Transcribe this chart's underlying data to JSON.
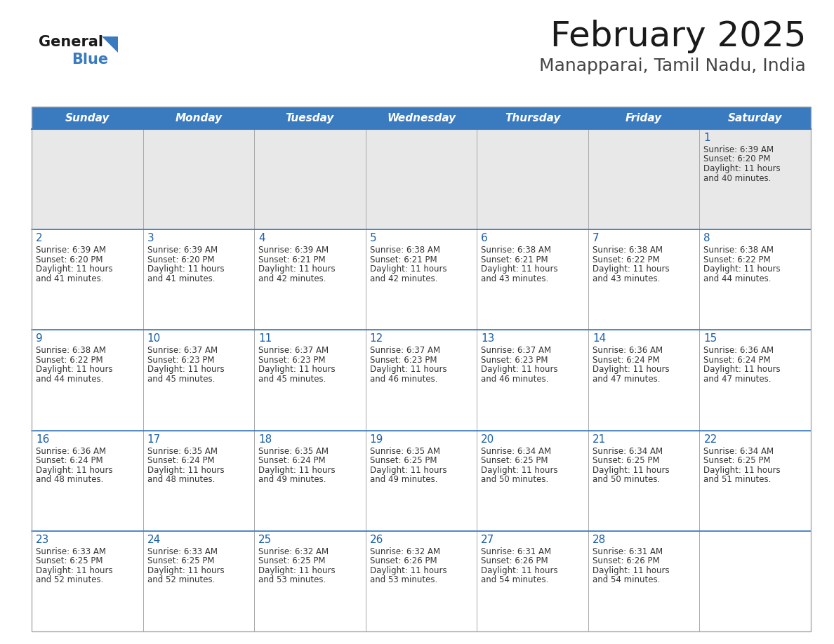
{
  "title": "February 2025",
  "subtitle": "Manapparai, Tamil Nadu, India",
  "days_of_week": [
    "Sunday",
    "Monday",
    "Tuesday",
    "Wednesday",
    "Thursday",
    "Friday",
    "Saturday"
  ],
  "header_bg": "#3a7abf",
  "header_text": "#ffffff",
  "row1_bg": "#e8e8e8",
  "cell_bg": "#ffffff",
  "day_number_color": "#1a5fa8",
  "cell_text_color": "#333333",
  "grid_color": "#aaaaaa",
  "border_color": "#3a7abf",
  "title_color": "#1a1a1a",
  "subtitle_color": "#444444",
  "logo_general_color": "#1a1a1a",
  "logo_blue_color": "#3a7abf",
  "calendar": [
    [
      null,
      null,
      null,
      null,
      null,
      null,
      {
        "day": 1,
        "sunrise": "6:39 AM",
        "sunset": "6:20 PM",
        "daylight_hours": 11,
        "daylight_min": "40 minutes."
      }
    ],
    [
      {
        "day": 2,
        "sunrise": "6:39 AM",
        "sunset": "6:20 PM",
        "daylight_hours": 11,
        "daylight_min": "41 minutes."
      },
      {
        "day": 3,
        "sunrise": "6:39 AM",
        "sunset": "6:20 PM",
        "daylight_hours": 11,
        "daylight_min": "41 minutes."
      },
      {
        "day": 4,
        "sunrise": "6:39 AM",
        "sunset": "6:21 PM",
        "daylight_hours": 11,
        "daylight_min": "42 minutes."
      },
      {
        "day": 5,
        "sunrise": "6:38 AM",
        "sunset": "6:21 PM",
        "daylight_hours": 11,
        "daylight_min": "42 minutes."
      },
      {
        "day": 6,
        "sunrise": "6:38 AM",
        "sunset": "6:21 PM",
        "daylight_hours": 11,
        "daylight_min": "43 minutes."
      },
      {
        "day": 7,
        "sunrise": "6:38 AM",
        "sunset": "6:22 PM",
        "daylight_hours": 11,
        "daylight_min": "43 minutes."
      },
      {
        "day": 8,
        "sunrise": "6:38 AM",
        "sunset": "6:22 PM",
        "daylight_hours": 11,
        "daylight_min": "44 minutes."
      }
    ],
    [
      {
        "day": 9,
        "sunrise": "6:38 AM",
        "sunset": "6:22 PM",
        "daylight_hours": 11,
        "daylight_min": "44 minutes."
      },
      {
        "day": 10,
        "sunrise": "6:37 AM",
        "sunset": "6:23 PM",
        "daylight_hours": 11,
        "daylight_min": "45 minutes."
      },
      {
        "day": 11,
        "sunrise": "6:37 AM",
        "sunset": "6:23 PM",
        "daylight_hours": 11,
        "daylight_min": "45 minutes."
      },
      {
        "day": 12,
        "sunrise": "6:37 AM",
        "sunset": "6:23 PM",
        "daylight_hours": 11,
        "daylight_min": "46 minutes."
      },
      {
        "day": 13,
        "sunrise": "6:37 AM",
        "sunset": "6:23 PM",
        "daylight_hours": 11,
        "daylight_min": "46 minutes."
      },
      {
        "day": 14,
        "sunrise": "6:36 AM",
        "sunset": "6:24 PM",
        "daylight_hours": 11,
        "daylight_min": "47 minutes."
      },
      {
        "day": 15,
        "sunrise": "6:36 AM",
        "sunset": "6:24 PM",
        "daylight_hours": 11,
        "daylight_min": "47 minutes."
      }
    ],
    [
      {
        "day": 16,
        "sunrise": "6:36 AM",
        "sunset": "6:24 PM",
        "daylight_hours": 11,
        "daylight_min": "48 minutes."
      },
      {
        "day": 17,
        "sunrise": "6:35 AM",
        "sunset": "6:24 PM",
        "daylight_hours": 11,
        "daylight_min": "48 minutes."
      },
      {
        "day": 18,
        "sunrise": "6:35 AM",
        "sunset": "6:24 PM",
        "daylight_hours": 11,
        "daylight_min": "49 minutes."
      },
      {
        "day": 19,
        "sunrise": "6:35 AM",
        "sunset": "6:25 PM",
        "daylight_hours": 11,
        "daylight_min": "49 minutes."
      },
      {
        "day": 20,
        "sunrise": "6:34 AM",
        "sunset": "6:25 PM",
        "daylight_hours": 11,
        "daylight_min": "50 minutes."
      },
      {
        "day": 21,
        "sunrise": "6:34 AM",
        "sunset": "6:25 PM",
        "daylight_hours": 11,
        "daylight_min": "50 minutes."
      },
      {
        "day": 22,
        "sunrise": "6:34 AM",
        "sunset": "6:25 PM",
        "daylight_hours": 11,
        "daylight_min": "51 minutes."
      }
    ],
    [
      {
        "day": 23,
        "sunrise": "6:33 AM",
        "sunset": "6:25 PM",
        "daylight_hours": 11,
        "daylight_min": "52 minutes."
      },
      {
        "day": 24,
        "sunrise": "6:33 AM",
        "sunset": "6:25 PM",
        "daylight_hours": 11,
        "daylight_min": "52 minutes."
      },
      {
        "day": 25,
        "sunrise": "6:32 AM",
        "sunset": "6:25 PM",
        "daylight_hours": 11,
        "daylight_min": "53 minutes."
      },
      {
        "day": 26,
        "sunrise": "6:32 AM",
        "sunset": "6:26 PM",
        "daylight_hours": 11,
        "daylight_min": "53 minutes."
      },
      {
        "day": 27,
        "sunrise": "6:31 AM",
        "sunset": "6:26 PM",
        "daylight_hours": 11,
        "daylight_min": "54 minutes."
      },
      {
        "day": 28,
        "sunrise": "6:31 AM",
        "sunset": "6:26 PM",
        "daylight_hours": 11,
        "daylight_min": "54 minutes."
      },
      null
    ]
  ]
}
